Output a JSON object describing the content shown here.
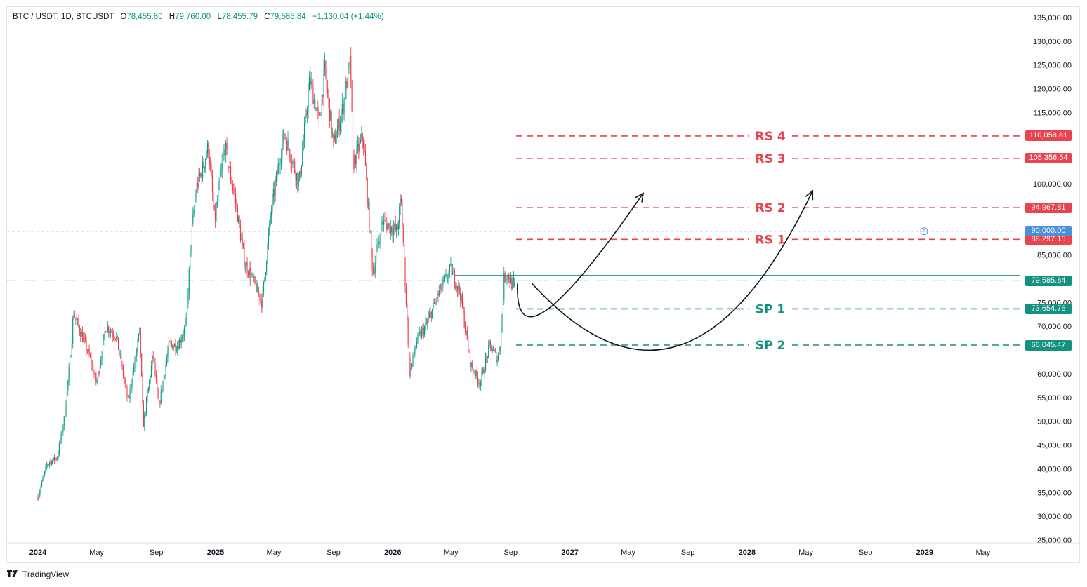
{
  "header": {
    "symbol": "BTC / USDT, 1D, BTCUSDT",
    "open_label": "O",
    "open": "78,455.80",
    "high_label": "H",
    "high": "79,760.00",
    "low_label": "L",
    "low": "78,455.79",
    "close_label": "C",
    "close": "79,585.84",
    "change": "+1,130.04 (+1.44%)"
  },
  "footer": {
    "brand": "TradingView"
  },
  "colors": {
    "up": "#089981",
    "down": "#f23645",
    "resistance": "#e8434f",
    "support": "#14917f",
    "alert": "#4a90d9"
  },
  "chart_data": {
    "type": "candlestick",
    "interval": "1D",
    "x_axis": {
      "ticks": [
        "2024",
        "May",
        "Sep",
        "2025",
        "May",
        "Sep",
        "2026",
        "May",
        "Sep",
        "2027",
        "May",
        "Sep",
        "2028",
        "May",
        "Sep",
        "2029",
        "May"
      ],
      "bold_ticks": [
        "2024",
        "2025",
        "2026",
        "2027",
        "2028",
        "2029"
      ]
    },
    "y_axis": {
      "ticks": [
        "135,000.00",
        "130,000.00",
        "125,000.00",
        "120,000.00",
        "115,000.00",
        "100,000.00",
        "85,000.00",
        "75,000.00",
        "70,000.00",
        "60,000.00",
        "55,000.00",
        "50,000.00",
        "45,000.00",
        "40,000.00",
        "35,000.00",
        "30,000.00",
        "25,000.00"
      ],
      "range": [
        25000,
        135000
      ]
    },
    "price_path": [
      [
        "2024-01-01",
        34000
      ],
      [
        "2024-01-20",
        41000
      ],
      [
        "2024-02-10",
        42500
      ],
      [
        "2024-02-25",
        51000
      ],
      [
        "2024-03-10",
        66000
      ],
      [
        "2024-03-14",
        73000
      ],
      [
        "2024-04-15",
        64000
      ],
      [
        "2024-05-01",
        58000
      ],
      [
        "2024-05-20",
        70000
      ],
      [
        "2024-06-10",
        68000
      ],
      [
        "2024-07-05",
        54000
      ],
      [
        "2024-07-29",
        69000
      ],
      [
        "2024-08-05",
        49000
      ],
      [
        "2024-08-25",
        64000
      ],
      [
        "2024-09-06",
        53000
      ],
      [
        "2024-09-27",
        66000
      ],
      [
        "2024-10-15",
        66000
      ],
      [
        "2024-11-01",
        70000
      ],
      [
        "2024-11-12",
        89000
      ],
      [
        "2024-11-22",
        99000
      ],
      [
        "2024-12-05",
        103000
      ],
      [
        "2024-12-17",
        108000
      ],
      [
        "2024-12-30",
        92000
      ],
      [
        "2025-01-20",
        108000
      ],
      [
        "2025-02-10",
        97000
      ],
      [
        "2025-03-01",
        84000
      ],
      [
        "2025-04-07",
        75000
      ],
      [
        "2025-04-25",
        94000
      ],
      [
        "2025-05-22",
        111000
      ],
      [
        "2025-06-22",
        100000
      ],
      [
        "2025-07-14",
        122000
      ],
      [
        "2025-08-02",
        113000
      ],
      [
        "2025-08-14",
        124000
      ],
      [
        "2025-09-01",
        108000
      ],
      [
        "2025-09-20",
        116000
      ],
      [
        "2025-10-06",
        126000
      ],
      [
        "2025-10-11",
        104000
      ],
      [
        "2025-11-01",
        110000
      ],
      [
        "2025-11-21",
        81000
      ],
      [
        "2025-12-10",
        92000
      ],
      [
        "2026-01-10",
        90000
      ],
      [
        "2026-01-18",
        97000
      ],
      [
        "2026-02-05",
        60000
      ],
      [
        "2026-02-20",
        67000
      ],
      [
        "2026-03-10",
        70000
      ],
      [
        "2026-04-10",
        78000
      ],
      [
        "2026-05-01",
        82000
      ],
      [
        "2026-05-20",
        77000
      ],
      [
        "2026-06-10",
        62000
      ],
      [
        "2026-06-30",
        58000
      ],
      [
        "2026-07-20",
        66000
      ],
      [
        "2026-08-05",
        63000
      ],
      [
        "2026-08-12",
        68000
      ],
      [
        "2026-08-18",
        80000
      ],
      [
        "2026-08-25",
        81000
      ],
      [
        "2026-09-05",
        78500
      ],
      [
        "2026-09-09",
        79585.84
      ]
    ],
    "last_price": 79585.84,
    "levels": [
      {
        "name": "RS 4",
        "price": 110058.81,
        "label": "110,058.81",
        "kind": "resistance"
      },
      {
        "name": "RS 3",
        "price": 105356.54,
        "label": "105,356.54",
        "kind": "resistance"
      },
      {
        "name": "RS 2",
        "price": 94967.81,
        "label": "94,967.81",
        "kind": "resistance"
      },
      {
        "name": "RS 1",
        "price": 88297.15,
        "label": "88,297.15",
        "kind": "resistance"
      },
      {
        "name": "SP 1",
        "price": 73654.76,
        "label": "73,654.76",
        "kind": "support"
      },
      {
        "name": "SP 2",
        "price": 66045.47,
        "label": "66,045.47",
        "kind": "support"
      }
    ],
    "alert_level": {
      "price": 90000,
      "label": "90,000.00"
    },
    "last_price_label": "79,585.84",
    "projections": [
      {
        "points": [
          [
            "2026-09-15",
            79000
          ],
          [
            "2026-11-15",
            73500
          ],
          [
            "2027-06-01",
            98000
          ]
        ]
      },
      {
        "points": [
          [
            "2026-10-15",
            79000
          ],
          [
            "2027-08-15",
            66000
          ],
          [
            "2028-05-15",
            98500
          ]
        ]
      }
    ],
    "title": "",
    "xlabel": "",
    "ylabel": ""
  }
}
